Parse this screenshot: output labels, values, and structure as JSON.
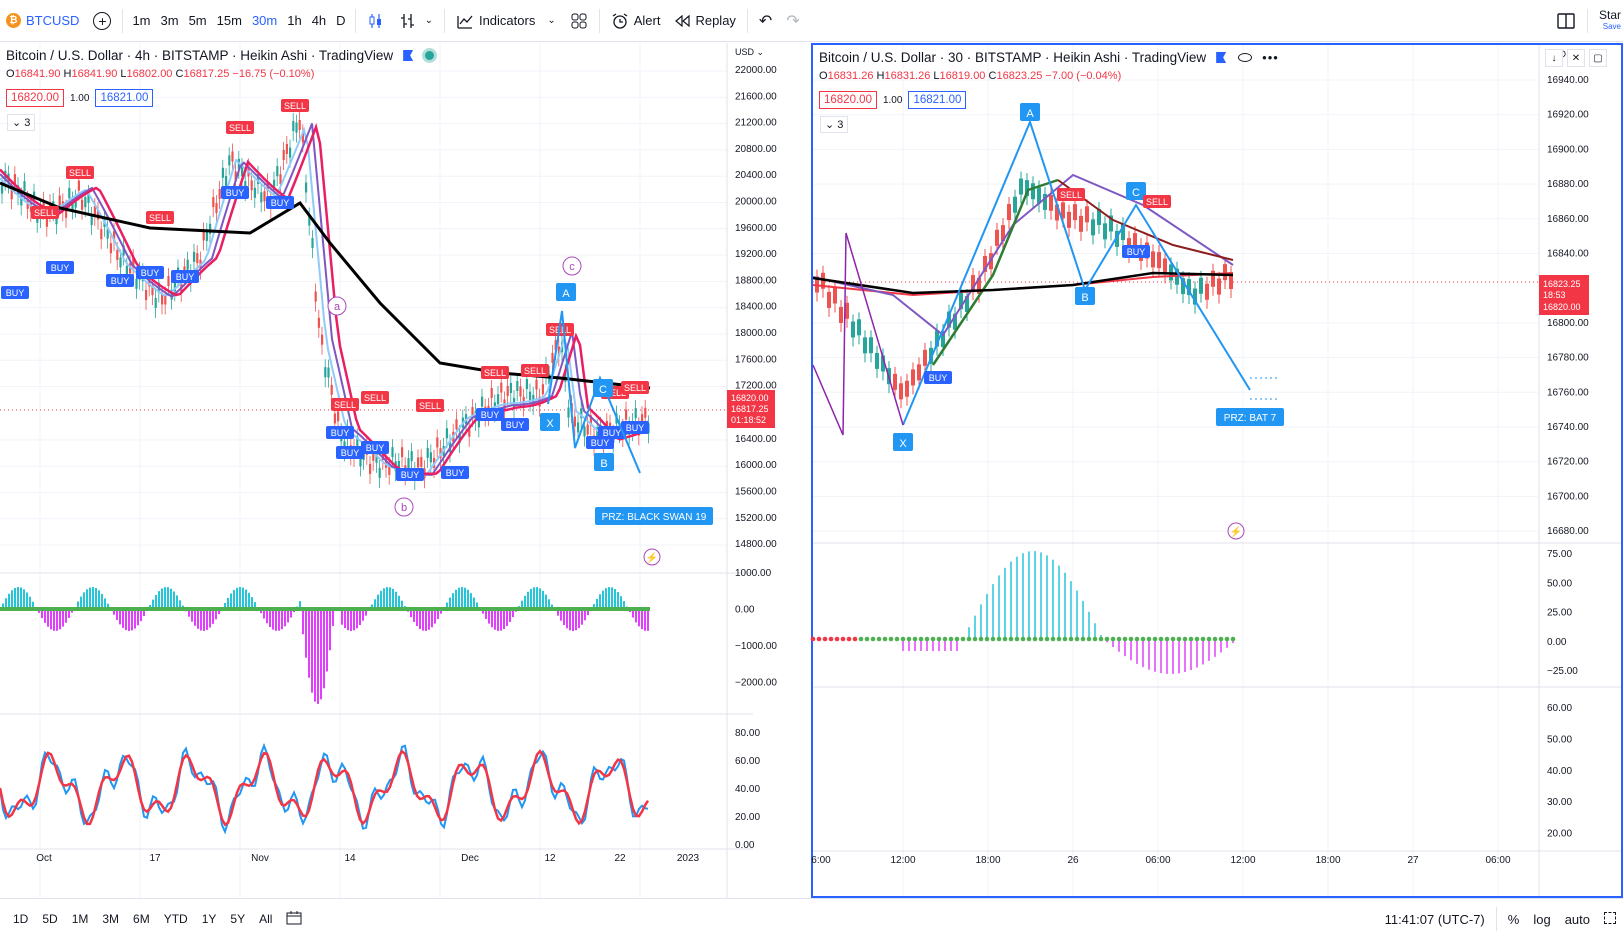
{
  "toolbar": {
    "symbol": "BTCUSD",
    "btc_glyph": "₿",
    "add_glyph": "+",
    "timeframes": [
      "1m",
      "3m",
      "5m",
      "15m",
      "30m",
      "1h",
      "4h",
      "D"
    ],
    "active_timeframe": "30m",
    "indicators": "Indicators",
    "alert": "Alert",
    "replay": "Replay",
    "undo_glyph": "↶",
    "redo_glyph": "↷",
    "star": "Star",
    "save": "Save",
    "accent": "#2962ff"
  },
  "left_chart": {
    "title": "Bitcoin / U.S. Dollar · 4h · BITSTAMP · Heikin Ashi · TradingView",
    "ohlc": {
      "o": "16841.90",
      "h": "16841.90",
      "l": "16802.00",
      "c": "16817.25",
      "chg": "−16.75 (−0.10%)"
    },
    "sell_price": "16820.00",
    "qty": "1.00",
    "buy_price": "16821.00",
    "collapse": "3",
    "currency": "USD",
    "price_ticks": [
      "22000.00",
      "21600.00",
      "21200.00",
      "20800.00",
      "20400.00",
      "20000.00",
      "19600.00",
      "19200.00",
      "18800.00",
      "18400.00",
      "18000.00",
      "17600.00",
      "17200.00",
      "16400.00",
      "16000.00",
      "15600.00",
      "15200.00",
      "14800.00"
    ],
    "last_price": "16820.00",
    "last_price2": "16817.25",
    "countdown": "01:18:52",
    "macd_ticks": [
      "1000.00",
      "0.00",
      "−1000.00",
      "−2000.00"
    ],
    "rsi_ticks": [
      "80.00",
      "60.00",
      "40.00",
      "20.00",
      "0.00"
    ],
    "time_ticks": [
      "Oct",
      "17",
      "Nov",
      "14",
      "Dec",
      "12",
      "22",
      "2023"
    ],
    "labels": {
      "c": "c",
      "a": "a",
      "b": "b",
      "A": "A",
      "B": "B",
      "C": "C",
      "X": "X"
    },
    "prz": "PRZ: BLACK SWAN 19",
    "buy": "BUY",
    "sell": "SELL"
  },
  "right_chart": {
    "title": "Bitcoin / U.S. Dollar · 30 · BITSTAMP · Heikin Ashi · TradingView",
    "ohlc": {
      "o": "16831.26",
      "h": "16831.26",
      "l": "16819.00",
      "c": "16823.25",
      "chg": "−7.00 (−0.04%)"
    },
    "sell_price": "16820.00",
    "qty": "1.00",
    "buy_price": "16821.00",
    "collapse": "3",
    "currency": "USD",
    "price_ticks": [
      "16940.00",
      "16920.00",
      "16900.00",
      "16880.00",
      "16860.00",
      "16840.00",
      "16800.00",
      "16780.00",
      "16760.00",
      "16740.00",
      "16720.00",
      "16700.00",
      "16680.00"
    ],
    "last_price": "16823.25",
    "countdown": "18:53",
    "last_price2": "16820.00",
    "macd_ticks": [
      "75.00",
      "50.00",
      "25.00",
      "0.00",
      "−25.00"
    ],
    "rsi_ticks": [
      "60.00",
      "50.00",
      "40.00",
      "30.00",
      "20.00"
    ],
    "time_ticks": [
      "6:00",
      "12:00",
      "18:00",
      "26",
      "06:00",
      "12:00",
      "18:00",
      "27",
      "06:00"
    ],
    "labels": {
      "A": "A",
      "B": "B",
      "C": "C",
      "X": "X"
    },
    "prz": "PRZ: BAT 7",
    "buy": "BUY",
    "sell": "SELL"
  },
  "bottombar": {
    "ranges": [
      "1D",
      "5D",
      "1M",
      "3M",
      "6M",
      "YTD",
      "1Y",
      "5Y",
      "All"
    ],
    "time": "11:41:07 (UTC-7)",
    "percent": "%",
    "log": "log",
    "auto": "auto"
  },
  "colors": {
    "red": "#f23645",
    "blue": "#2962ff",
    "pattern": "#2196f3",
    "black": "#000000",
    "magenta": "#e040fb",
    "teal": "#26c6da",
    "green": "#4caf50"
  }
}
